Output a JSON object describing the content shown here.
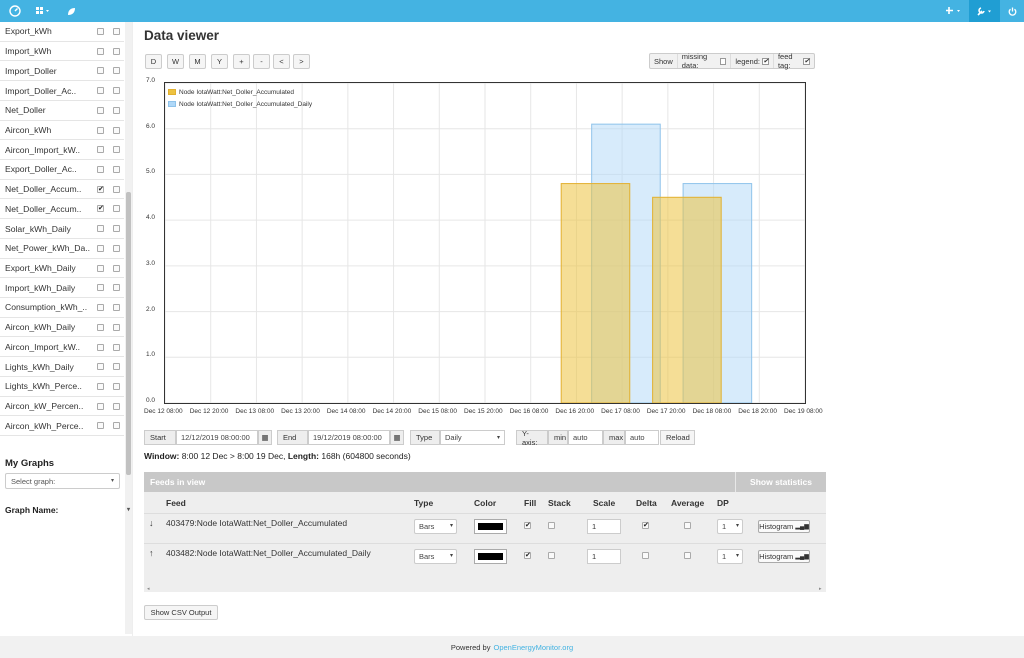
{
  "topbar": {
    "logo_icon": "gauge-icon",
    "apps_icon": "apps-grid-icon",
    "leaf_icon": "leaf-icon",
    "add_icon": "plus-icon",
    "tools_icon": "wrench-icon",
    "power_icon": "power-icon",
    "caret": "▾"
  },
  "sidebar": {
    "feeds": [
      {
        "label": "Export_kWh",
        "checked": false
      },
      {
        "label": "Import_kWh",
        "checked": false
      },
      {
        "label": "Import_Doller",
        "checked": false
      },
      {
        "label": "Import_Doller_Ac..",
        "checked": false
      },
      {
        "label": "Net_Doller",
        "checked": false
      },
      {
        "label": "Aircon_kWh",
        "checked": false
      },
      {
        "label": "Aircon_Import_kW..",
        "checked": false
      },
      {
        "label": "Export_Doller_Ac..",
        "checked": false
      },
      {
        "label": "Net_Doller_Accum..",
        "checked": true
      },
      {
        "label": "Net_Doller_Accum..",
        "checked": true
      },
      {
        "label": "Solar_kWh_Daily",
        "checked": false
      },
      {
        "label": "Net_Power_kWh_Da..",
        "checked": false
      },
      {
        "label": "Export_kWh_Daily",
        "checked": false
      },
      {
        "label": "Import_kWh_Daily",
        "checked": false
      },
      {
        "label": "Consumption_kWh_..",
        "checked": false
      },
      {
        "label": "Aircon_kWh_Daily",
        "checked": false
      },
      {
        "label": "Aircon_Import_kW..",
        "checked": false
      },
      {
        "label": "Lights_kWh_Daily",
        "checked": false
      },
      {
        "label": "Lights_kWh_Perce..",
        "checked": false
      },
      {
        "label": "Aircon_kW_Percen..",
        "checked": false
      },
      {
        "label": "Aircon_kWh_Perce..",
        "checked": false
      }
    ],
    "my_graphs": "My Graphs",
    "select_graph": "Select graph:",
    "graph_name": "Graph Name:"
  },
  "page_title": "Data viewer",
  "range_buttons": [
    "D",
    "W",
    "M",
    "Y",
    "+",
    "-",
    "<",
    ">"
  ],
  "show_bar": {
    "show": "Show",
    "missing": "missing data:",
    "legend": "legend:",
    "feedtag": "feed tag:",
    "missing_checked": false,
    "legend_checked": true,
    "feedtag_checked": true
  },
  "chart_data": {
    "type": "bar",
    "ylim": [
      0,
      7
    ],
    "yticks": [
      "0.0",
      "1.0",
      "2.0",
      "3.0",
      "4.0",
      "5.0",
      "6.0",
      "7.0"
    ],
    "x_ticks": [
      "Dec 12 08:00",
      "Dec 12 20:00",
      "Dec 13 08:00",
      "Dec 13 20:00",
      "Dec 14 08:00",
      "Dec 14 20:00",
      "Dec 15 08:00",
      "Dec 15 20:00",
      "Dec 16 08:00",
      "Dec 16 20:00",
      "Dec 17 08:00",
      "Dec 17 20:00",
      "Dec 18 08:00",
      "Dec 18 20:00",
      "Dec 19 08:00"
    ],
    "x_range": [
      "Dec 12 08:00",
      "Dec 19 08:00"
    ],
    "grid": true,
    "legend_position": "top-left",
    "series": [
      {
        "name": "Node IotaWatt:Net_Doller_Accumulated",
        "color": "#edc240",
        "bars": [
          {
            "start": "Dec 16 16:00",
            "end": "Dec 17 10:00",
            "value": 4.8
          },
          {
            "start": "Dec 17 16:00",
            "end": "Dec 18 10:00",
            "value": 4.5
          }
        ]
      },
      {
        "name": "Node IotaWatt:Net_Doller_Accumulated_Daily",
        "color": "#afd8f8",
        "bars": [
          {
            "start": "Dec 17 00:00",
            "end": "Dec 17 18:00",
            "value": 6.1
          },
          {
            "start": "Dec 18 00:00",
            "end": "Dec 18 18:00",
            "value": 4.8
          }
        ]
      }
    ]
  },
  "controls": {
    "start_label": "Start",
    "start_value": "12/12/2019 08:00:00",
    "end_label": "End",
    "end_value": "19/12/2019 08:00:00",
    "type_label": "Type",
    "type_value": "Daily",
    "yaxis_label": "Y-axis:",
    "min_label": "min",
    "min_value": "auto",
    "max_label": "max",
    "max_value": "auto",
    "reload": "Reload",
    "calendar_icon": "calendar-icon"
  },
  "window_info": {
    "prefix": "Window:",
    "range": "8:00 12 Dec > 8:00 19 Dec,",
    "length_label": "Length:",
    "length": "168h (604800 seconds)"
  },
  "feeds_table": {
    "title": "Feeds in view",
    "stats_button": "Show statistics",
    "headers": [
      "Feed",
      "Type",
      "Color",
      "Fill",
      "Stack",
      "Scale",
      "Delta",
      "Average",
      "DP"
    ],
    "rows": [
      {
        "arrow": "↓",
        "name": "403479:Node IotaWatt:Net_Doller_Accumulated",
        "type": "Bars",
        "color": "#000000",
        "fill": true,
        "stack": false,
        "scale": "1",
        "delta": true,
        "average": false,
        "dp": "1",
        "histogram": "Histogram"
      },
      {
        "arrow": "↑",
        "name": "403482:Node IotaWatt:Net_Doller_Accumulated_Daily",
        "type": "Bars",
        "color": "#000000",
        "fill": true,
        "stack": false,
        "scale": "1",
        "delta": false,
        "average": false,
        "dp": "1",
        "histogram": "Histogram"
      }
    ]
  },
  "csv_button": "Show CSV Output",
  "footer": {
    "text": "Powered by",
    "link": "OpenEnergyMonitor.org"
  }
}
